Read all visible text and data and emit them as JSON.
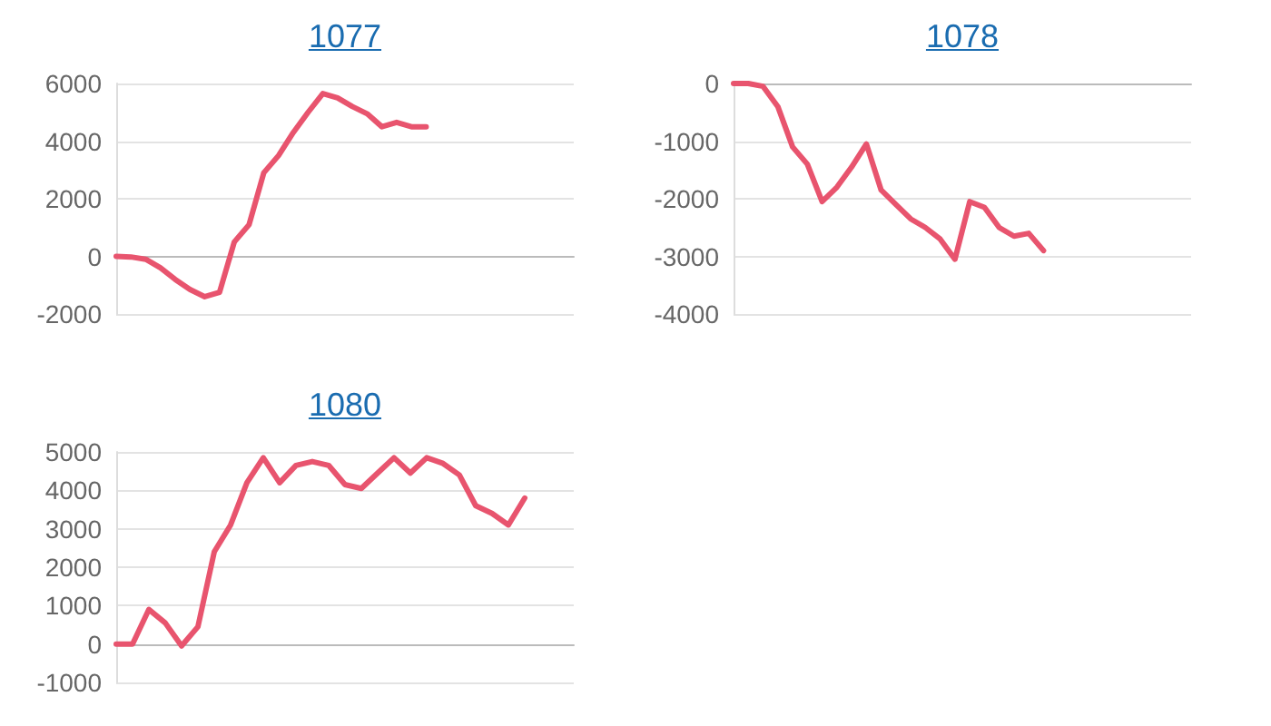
{
  "chart_data": [
    {
      "type": "line",
      "title": "1077",
      "categories": [
        null,
        null,
        null,
        null,
        null,
        null,
        null,
        null,
        null,
        null,
        null,
        null,
        null,
        null,
        null,
        null,
        null,
        null,
        null,
        null,
        null,
        null,
        null,
        null,
        null,
        null,
        null,
        null,
        null,
        null,
        null,
        null
      ],
      "values": [
        0,
        -20,
        -100,
        -400,
        -800,
        -1150,
        -1400,
        -1250,
        500,
        1100,
        2900,
        3500,
        4300,
        5000,
        5650,
        5500,
        5200,
        4950,
        4500,
        4650,
        4500,
        4500,
        null,
        null,
        null,
        null,
        null,
        null,
        null,
        null,
        null,
        null
      ],
      "color": "#e8546e",
      "ylim": [
        -2000,
        6000
      ],
      "yticks": [
        -2000,
        0,
        2000,
        4000,
        6000
      ],
      "grid": "y",
      "tick_labels": "y"
    },
    {
      "type": "line",
      "title": "1078",
      "categories": [
        null,
        null,
        null,
        null,
        null,
        null,
        null,
        null,
        null,
        null,
        null,
        null,
        null,
        null,
        null,
        null,
        null,
        null,
        null,
        null,
        null,
        null,
        null,
        null,
        null,
        null,
        null,
        null,
        null,
        null,
        null,
        null
      ],
      "values": [
        0,
        0,
        -50,
        -400,
        -1100,
        -1400,
        -2050,
        -1800,
        -1450,
        -1050,
        -1850,
        -2100,
        -2350,
        -2500,
        -2700,
        -3050,
        -2050,
        -2150,
        -2500,
        -2650,
        -2600,
        -2900,
        null,
        null,
        null,
        null,
        null,
        null,
        null,
        null,
        null,
        null
      ],
      "color": "#e8546e",
      "ylim": [
        -4000,
        0
      ],
      "yticks": [
        -4000,
        -3000,
        -2000,
        -1000,
        0
      ],
      "grid": "y",
      "tick_labels": "y"
    },
    {
      "type": "line",
      "title": "1080",
      "categories": [
        null,
        null,
        null,
        null,
        null,
        null,
        null,
        null,
        null,
        null,
        null,
        null,
        null,
        null,
        null,
        null,
        null,
        null,
        null,
        null,
        null,
        null,
        null,
        null,
        null,
        null,
        null,
        null,
        null
      ],
      "values": [
        0,
        0,
        900,
        550,
        -50,
        450,
        2400,
        3100,
        4200,
        4850,
        4200,
        4650,
        4750,
        4650,
        4150,
        4050,
        4450,
        4850,
        4450,
        4850,
        4700,
        4400,
        3600,
        3400,
        3100,
        3800,
        null,
        null,
        null
      ],
      "color": "#e8546e",
      "ylim": [
        -1000,
        5000
      ],
      "yticks": [
        -1000,
        0,
        1000,
        2000,
        3000,
        4000,
        5000
      ],
      "grid": "y",
      "tick_labels": "y"
    }
  ]
}
